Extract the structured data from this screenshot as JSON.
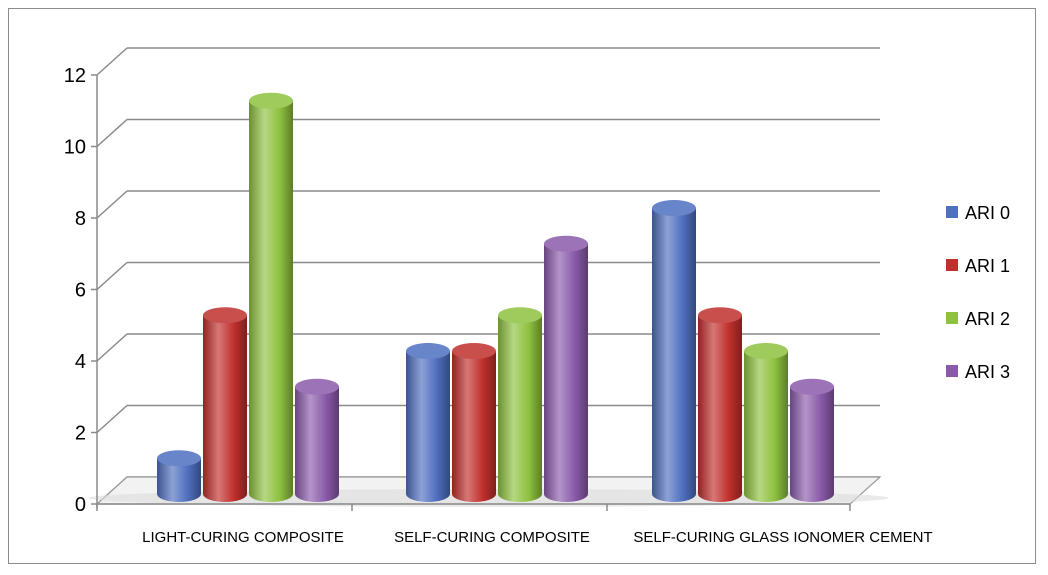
{
  "chart_data": {
    "type": "bar",
    "style": "3d-cylinder",
    "title": "",
    "xlabel": "",
    "ylabel": "",
    "categories": [
      "LIGHT-CURING COMPOSITE",
      "SELF-CURING COMPOSITE",
      "SELF-CURING GLASS IONOMER CEMENT"
    ],
    "series": [
      {
        "name": "ARI 0",
        "values": [
          1,
          4,
          8
        ],
        "color": "#4f6fbf"
      },
      {
        "name": "ARI 1",
        "values": [
          5,
          4,
          5
        ],
        "color": "#c0302d"
      },
      {
        "name": "ARI 2",
        "values": [
          11,
          5,
          4
        ],
        "color": "#8ec13f"
      },
      {
        "name": "ARI 3",
        "values": [
          3,
          7,
          3
        ],
        "color": "#8a5aaa"
      }
    ],
    "ylim": [
      0,
      12
    ],
    "yticks": [
      "0",
      "2",
      "4",
      "6",
      "8",
      "10",
      "12"
    ],
    "grid": true,
    "legend_position": "right"
  }
}
